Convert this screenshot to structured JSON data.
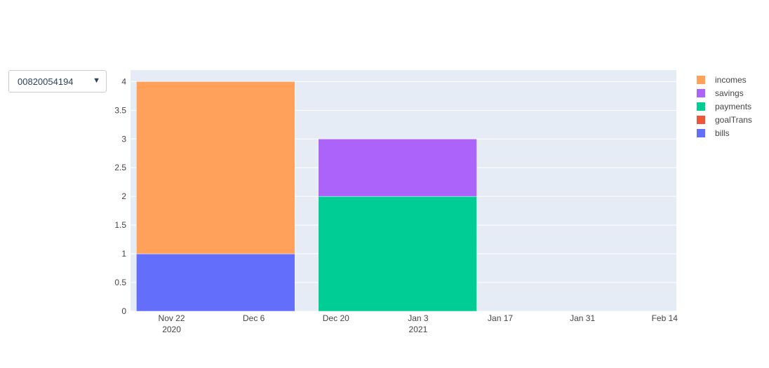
{
  "dropdown": {
    "selected": "00820054194",
    "arrow_glyph": "▼"
  },
  "chart_data": {
    "type": "bar",
    "barmode": "stack",
    "x_axis": {
      "type": "date",
      "range": [
        "2020-11-15",
        "2021-02-16"
      ],
      "ticks": [
        {
          "date": "2020-11-22",
          "label": "Nov 22",
          "sublabel": "2020"
        },
        {
          "date": "2020-12-06",
          "label": "Dec 6",
          "sublabel": ""
        },
        {
          "date": "2020-12-20",
          "label": "Dec 20",
          "sublabel": ""
        },
        {
          "date": "2021-01-03",
          "label": "Jan 3",
          "sublabel": "2021"
        },
        {
          "date": "2021-01-17",
          "label": "Jan 17",
          "sublabel": ""
        },
        {
          "date": "2021-01-31",
          "label": "Jan 31",
          "sublabel": ""
        },
        {
          "date": "2021-02-14",
          "label": "Feb 14",
          "sublabel": ""
        }
      ]
    },
    "y_axis": {
      "range": [
        0,
        4.2
      ],
      "ticks": [
        {
          "value": 0,
          "label": "0"
        },
        {
          "value": 0.5,
          "label": "0.5"
        },
        {
          "value": 1,
          "label": "1"
        },
        {
          "value": 1.5,
          "label": "1.5"
        },
        {
          "value": 2,
          "label": "2"
        },
        {
          "value": 2.5,
          "label": "2.5"
        },
        {
          "value": 3,
          "label": "3"
        },
        {
          "value": 3.5,
          "label": "3.5"
        },
        {
          "value": 4,
          "label": "4"
        }
      ]
    },
    "x": [
      "2020-12-01",
      "2021-01-01"
    ],
    "bar_span_start": [
      "2020-11-16",
      "2020-12-17"
    ],
    "bar_span_end": [
      "2020-12-13",
      "2021-01-13"
    ],
    "series": [
      {
        "name": "bills",
        "color": "#636efa",
        "values": [
          1,
          0
        ]
      },
      {
        "name": "goalTrans",
        "color": "#ef553b",
        "values": [
          0,
          0
        ]
      },
      {
        "name": "payments",
        "color": "#00cc96",
        "values": [
          0,
          2
        ]
      },
      {
        "name": "savings",
        "color": "#ab63fa",
        "values": [
          0,
          1
        ]
      },
      {
        "name": "incomes",
        "color": "#ffa15a",
        "values": [
          3,
          0
        ]
      }
    ],
    "legend": {
      "placement": "right",
      "order": [
        "incomes",
        "savings",
        "payments",
        "goalTrans",
        "bills"
      ]
    },
    "grid": true,
    "plot_background": "#e5ecf6"
  }
}
